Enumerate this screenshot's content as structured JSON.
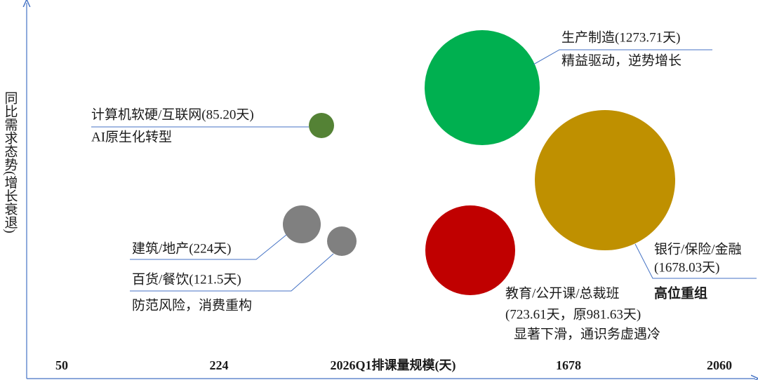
{
  "y_axis_label": "同比需求态势(增长衰退)",
  "x_axis_label": "2026Q1排课量规模(天)",
  "x_axis_ticks": [
    "50",
    "224",
    "1678",
    "2060"
  ],
  "nodes": [
    {
      "lines": [
        "生产制造(1273.71天)",
        "精益驱动，逆势增长"
      ],
      "color": "#00b050"
    },
    {
      "lines": [
        "计算机软硬/互联网(85.20天)",
        "AI原生化转型"
      ],
      "color": "#548235"
    },
    {
      "lines": [
        "银行/保险/金融",
        "(1678.03天)",
        "高位重组"
      ],
      "color": "#bf9000"
    },
    {
      "lines": [
        "建筑/地产(224天)"
      ],
      "color": "#808080"
    },
    {
      "lines": [
        "百货/餐饮(121.5天)",
        "防范风险，消费重构"
      ],
      "color": "#808080"
    },
    {
      "lines": [
        "教育/公开课/总裁班",
        "(723.61天，原981.63天)",
        "显著下滑，通识务虚遇冷"
      ],
      "color": "#c00000"
    }
  ]
}
